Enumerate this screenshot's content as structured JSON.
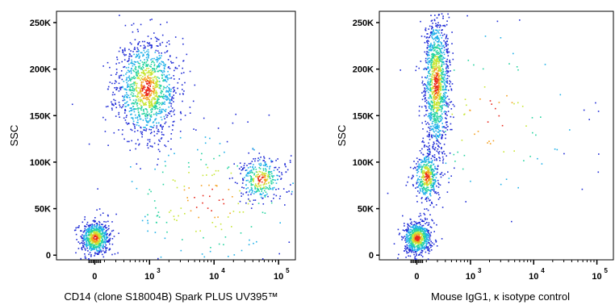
{
  "chart_data": [
    {
      "type": "scatter",
      "title": "",
      "xlabel": "CD14 (clone S18004B) Spark PLUS UV395™",
      "ylabel": "SSC",
      "x_scale": "biexponential",
      "y_scale": "linear",
      "ylim": [
        -5000,
        262144
      ],
      "y_ticks": [
        {
          "value": 0,
          "label": "0"
        },
        {
          "value": 50000,
          "label": "50K"
        },
        {
          "value": 100000,
          "label": "100K"
        },
        {
          "value": 150000,
          "label": "150K"
        },
        {
          "value": 200000,
          "label": "200K"
        },
        {
          "value": 250000,
          "label": "250K"
        }
      ],
      "x_ticks": [
        {
          "value": 0,
          "base": "0",
          "exp": ""
        },
        {
          "value": 1000,
          "base": "10",
          "exp": "3"
        },
        {
          "value": 10000,
          "base": "10",
          "exp": "4"
        },
        {
          "value": 100000,
          "base": "10",
          "exp": "5"
        }
      ],
      "populations": [
        {
          "x_log_center": 2.95,
          "x_log_sd": 0.24,
          "y_center": 180000,
          "y_sd": 27000,
          "share": 0.5
        },
        {
          "x_log_center": 4.72,
          "x_log_sd": 0.17,
          "y_center": 82000,
          "y_sd": 12000,
          "share": 0.14
        },
        {
          "x_log_center": 0,
          "x_log_sd": 0.32,
          "y_center": 19000,
          "y_sd": 9000,
          "share": 0.28
        },
        {
          "x_log_center": 3.9,
          "x_log_sd": 0.9,
          "y_center": 60000,
          "y_sd": 45000,
          "share": 0.08
        }
      ],
      "point_color": "#2020e0",
      "density_colors": [
        "#1f2bd6",
        "#1fb0e8",
        "#26d4a0",
        "#c8e636",
        "#f5a020",
        "#e8281c"
      ]
    },
    {
      "type": "scatter",
      "title": "",
      "xlabel": "Mouse IgG1, κ isotype control",
      "ylabel": "SSC",
      "x_scale": "biexponential",
      "y_scale": "linear",
      "ylim": [
        -5000,
        262144
      ],
      "y_ticks": [
        {
          "value": 0,
          "label": "0"
        },
        {
          "value": 50000,
          "label": "50K"
        },
        {
          "value": 100000,
          "label": "100K"
        },
        {
          "value": 150000,
          "label": "150K"
        },
        {
          "value": 200000,
          "label": "200K"
        },
        {
          "value": 250000,
          "label": "250K"
        }
      ],
      "x_ticks": [
        {
          "value": 0,
          "base": "0",
          "exp": ""
        },
        {
          "value": 1000,
          "base": "10",
          "exp": "3"
        },
        {
          "value": 10000,
          "base": "10",
          "exp": "4"
        },
        {
          "value": 100000,
          "base": "10",
          "exp": "5"
        }
      ],
      "populations": [
        {
          "x_log_center": 2.45,
          "x_log_sd": 0.1,
          "y_center": 185000,
          "y_sd": 38000,
          "share": 0.5
        },
        {
          "x_log_center": 2.3,
          "x_log_sd": 0.1,
          "y_center": 85000,
          "y_sd": 14000,
          "share": 0.18
        },
        {
          "x_log_center": 0,
          "x_log_sd": 0.32,
          "y_center": 19000,
          "y_sd": 9000,
          "share": 0.28
        },
        {
          "x_log_center": 3.3,
          "x_log_sd": 0.8,
          "y_center": 150000,
          "y_sd": 60000,
          "share": 0.04
        }
      ],
      "point_color": "#2020e0",
      "density_colors": [
        "#1f2bd6",
        "#1fb0e8",
        "#26d4a0",
        "#c8e636",
        "#f5a020",
        "#e8281c"
      ]
    }
  ]
}
